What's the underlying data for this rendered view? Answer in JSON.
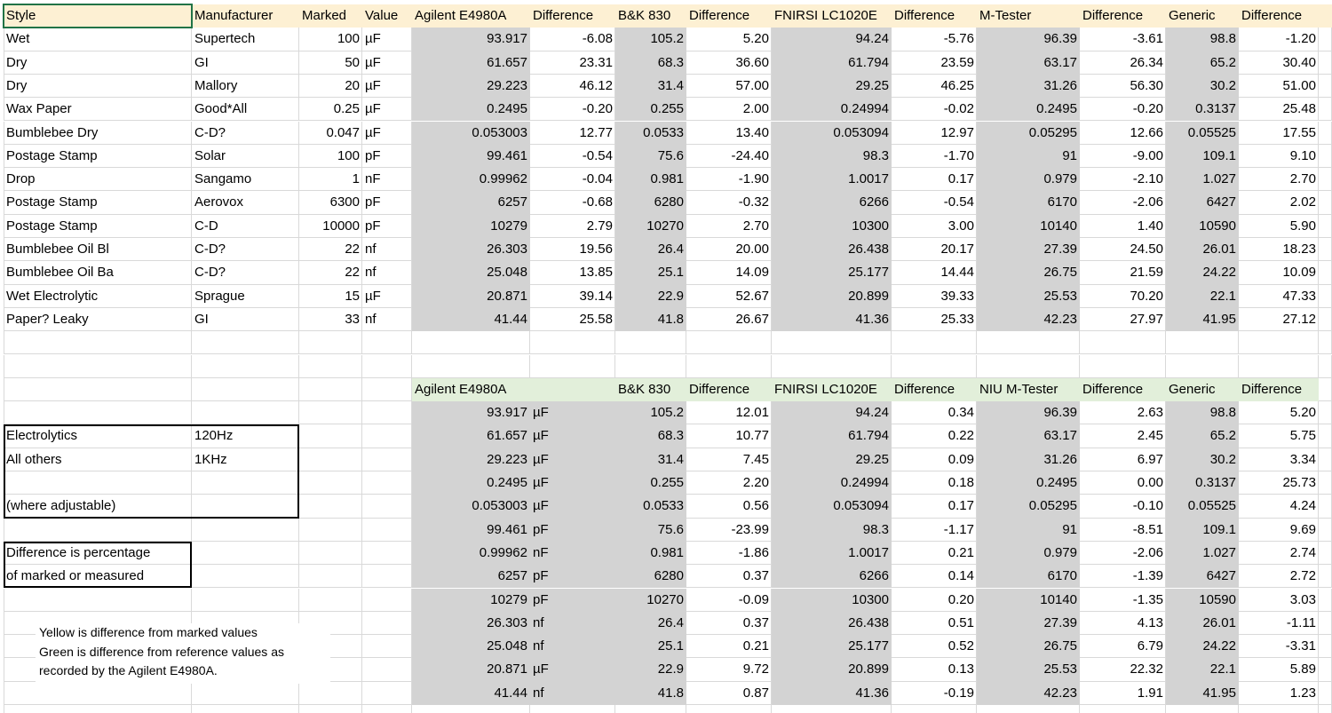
{
  "top_table": {
    "header": [
      "Style",
      "Manufacturer",
      "Marked",
      "Value",
      "Agilent E4980A",
      "Difference",
      "B&K 830",
      "Difference",
      "FNIRSI LC1020E",
      "Difference",
      "M-Tester",
      "Difference",
      "Generic",
      "Difference"
    ],
    "rows": [
      [
        "Wet",
        "Supertech",
        "100",
        "µF",
        "93.917",
        "-6.08",
        "105.2",
        "5.20",
        "94.24",
        "-5.76",
        "96.39",
        "-3.61",
        "98.8",
        "-1.20"
      ],
      [
        "Dry",
        "GI",
        "50",
        "µF",
        "61.657",
        "23.31",
        "68.3",
        "36.60",
        "61.794",
        "23.59",
        "63.17",
        "26.34",
        "65.2",
        "30.40"
      ],
      [
        "Dry",
        "Mallory",
        "20",
        "µF",
        "29.223",
        "46.12",
        "31.4",
        "57.00",
        "29.25",
        "46.25",
        "31.26",
        "56.30",
        "30.2",
        "51.00"
      ],
      [
        "Wax Paper",
        "Good*All",
        "0.25",
        "µF",
        "0.2495",
        "-0.20",
        "0.255",
        "2.00",
        "0.24994",
        "-0.02",
        "0.2495",
        "-0.20",
        "0.3137",
        "25.48"
      ],
      [
        "Bumblebee Dry",
        "C-D?",
        "0.047",
        "µF",
        "0.053003",
        "12.77",
        "0.0533",
        "13.40",
        "0.053094",
        "12.97",
        "0.05295",
        "12.66",
        "0.05525",
        "17.55"
      ],
      [
        "Postage Stamp",
        "Solar",
        "100",
        "pF",
        "99.461",
        "-0.54",
        "75.6",
        "-24.40",
        "98.3",
        "-1.70",
        "91",
        "-9.00",
        "109.1",
        "9.10"
      ],
      [
        "Drop",
        "Sangamo",
        "1",
        "nF",
        "0.99962",
        "-0.04",
        "0.981",
        "-1.90",
        "1.0017",
        "0.17",
        "0.979",
        "-2.10",
        "1.027",
        "2.70"
      ],
      [
        "Postage Stamp",
        "Aerovox",
        "6300",
        "pF",
        "6257",
        "-0.68",
        "6280",
        "-0.32",
        "6266",
        "-0.54",
        "6170",
        "-2.06",
        "6427",
        "2.02"
      ],
      [
        "Postage Stamp",
        "C-D",
        "10000",
        "pF",
        "10279",
        "2.79",
        "10270",
        "2.70",
        "10300",
        "3.00",
        "10140",
        "1.40",
        "10590",
        "5.90"
      ],
      [
        "Bumblebee Oil Bl",
        "C-D?",
        "22",
        "nf",
        "26.303",
        "19.56",
        "26.4",
        "20.00",
        "26.438",
        "20.17",
        "27.39",
        "24.50",
        "26.01",
        "18.23"
      ],
      [
        "Bumblebee Oil Ba",
        "C-D?",
        "22",
        "nf",
        "25.048",
        "13.85",
        "25.1",
        "14.09",
        "25.177",
        "14.44",
        "26.75",
        "21.59",
        "24.22",
        "10.09"
      ],
      [
        "Wet Electrolytic",
        "Sprague",
        "15",
        "µF",
        "20.871",
        "39.14",
        "22.9",
        "52.67",
        "20.899",
        "39.33",
        "25.53",
        "70.20",
        "22.1",
        "47.33"
      ],
      [
        "Paper? Leaky",
        "GI",
        "33",
        "nf",
        "41.44",
        "25.58",
        "41.8",
        "26.67",
        "41.36",
        "25.33",
        "42.23",
        "27.97",
        "41.95",
        "27.12"
      ]
    ]
  },
  "bottom_table": {
    "header": [
      "Agilent E4980A",
      "B&K 830",
      "Difference",
      "FNIRSI LC1020E",
      "Difference",
      "NIU M-Tester",
      "Difference",
      "Generic",
      "Difference"
    ],
    "rows": [
      [
        "93.917",
        "µF",
        "105.2",
        "12.01",
        "94.24",
        "0.34",
        "96.39",
        "2.63",
        "98.8",
        "5.20"
      ],
      [
        "61.657",
        "µF",
        "68.3",
        "10.77",
        "61.794",
        "0.22",
        "63.17",
        "2.45",
        "65.2",
        "5.75"
      ],
      [
        "29.223",
        "µF",
        "31.4",
        "7.45",
        "29.25",
        "0.09",
        "31.26",
        "6.97",
        "30.2",
        "3.34"
      ],
      [
        "0.2495",
        "µF",
        "0.255",
        "2.20",
        "0.24994",
        "0.18",
        "0.2495",
        "0.00",
        "0.3137",
        "25.73"
      ],
      [
        "0.053003",
        "µF",
        "0.0533",
        "0.56",
        "0.053094",
        "0.17",
        "0.05295",
        "-0.10",
        "0.05525",
        "4.24"
      ],
      [
        "99.461",
        "pF",
        "75.6",
        "-23.99",
        "98.3",
        "-1.17",
        "91",
        "-8.51",
        "109.1",
        "9.69"
      ],
      [
        "0.99962",
        "nF",
        "0.981",
        "-1.86",
        "1.0017",
        "0.21",
        "0.979",
        "-2.06",
        "1.027",
        "2.74"
      ],
      [
        "6257",
        "pF",
        "6280",
        "0.37",
        "6266",
        "0.14",
        "6170",
        "-1.39",
        "6427",
        "2.72"
      ],
      [
        "10279",
        "pF",
        "10270",
        "-0.09",
        "10300",
        "0.20",
        "10140",
        "-1.35",
        "10590",
        "3.03"
      ],
      [
        "26.303",
        "nf",
        "26.4",
        "0.37",
        "26.438",
        "0.51",
        "27.39",
        "4.13",
        "26.01",
        "-1.11"
      ],
      [
        "25.048",
        "nf",
        "25.1",
        "0.21",
        "25.177",
        "0.52",
        "26.75",
        "6.79",
        "24.22",
        "-3.31"
      ],
      [
        "20.871",
        "µF",
        "22.9",
        "9.72",
        "20.899",
        "0.13",
        "25.53",
        "22.32",
        "22.1",
        "5.89"
      ],
      [
        "41.44",
        "nf",
        "41.8",
        "0.87",
        "41.36",
        "-0.19",
        "42.23",
        "1.91",
        "41.95",
        "1.23"
      ]
    ]
  },
  "frequency_box": {
    "rows": [
      [
        "Electrolytics",
        "120Hz"
      ],
      [
        "All others",
        "1KHz"
      ]
    ],
    "footnote": "(where adjustable)"
  },
  "difference_note": [
    "Difference is percentage",
    "of marked or measured"
  ],
  "color_note": [
    "Yellow is difference from marked values",
    "Green is difference from reference values as",
    "recorded by the Agilent E4980A."
  ]
}
